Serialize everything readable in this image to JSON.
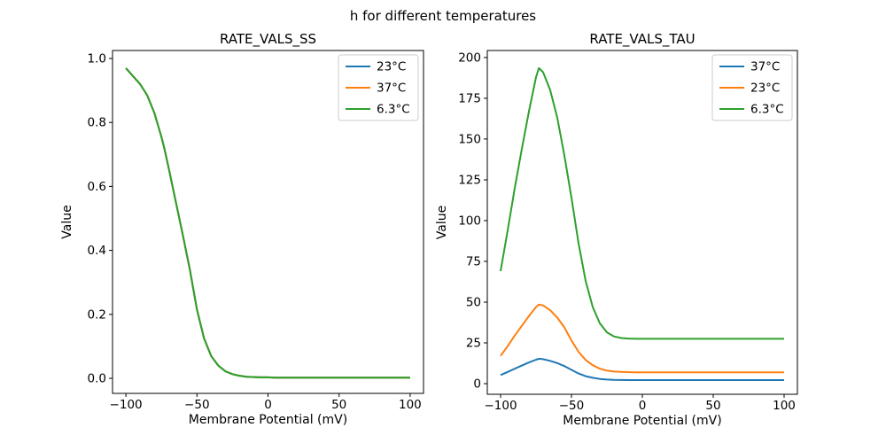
{
  "figure": {
    "suptitle": "h for different temperatures"
  },
  "palette": {
    "blue": "#1f77b4",
    "orange": "#ff7f0e",
    "green": "#2ca02c",
    "axis_color": "#000000",
    "legend_border": "#cccccc",
    "background": "#ffffff"
  },
  "chart_data": [
    {
      "type": "line",
      "title": "RATE_VALS_SS",
      "xlabel": "Membrane Potential (mV)",
      "ylabel": "Value",
      "xlim": [
        -109.4,
        109.4
      ],
      "ylim": [
        -0.047,
        1.025
      ],
      "grid": false,
      "legend_position": "upper right",
      "xticks": [
        -100,
        -50,
        0,
        50,
        100
      ],
      "xtick_labels": [
        "−100",
        "−50",
        "0",
        "50",
        "100"
      ],
      "yticks": [
        0.0,
        0.2,
        0.4,
        0.6,
        0.8,
        1.0
      ],
      "ytick_labels": [
        "0.0",
        "0.2",
        "0.4",
        "0.6",
        "0.8",
        "1.0"
      ],
      "legend": [
        {
          "label": "23°C",
          "color": "#1f77b4"
        },
        {
          "label": "37°C",
          "color": "#ff7f0e"
        },
        {
          "label": "6.3°C",
          "color": "#2ca02c"
        }
      ],
      "x": [
        -100,
        -95,
        -90,
        -85,
        -80,
        -75,
        -73,
        -70,
        -65,
        -60,
        -55,
        -50,
        -45,
        -40,
        -35,
        -30,
        -25,
        -20,
        -15,
        -10,
        -5,
        0,
        5,
        10,
        15,
        20,
        25,
        30,
        35,
        40,
        45,
        50,
        55,
        60,
        65,
        70,
        75,
        80,
        85,
        90,
        95,
        100
      ],
      "series": [
        {
          "name": "23°C",
          "color": "#1f77b4",
          "values": [
            0.97,
            0.945,
            0.92,
            0.885,
            0.83,
            0.755,
            0.72,
            0.66,
            0.555,
            0.45,
            0.34,
            0.215,
            0.125,
            0.07,
            0.04,
            0.022,
            0.013,
            0.008,
            0.005,
            0.004,
            0.003,
            0.003,
            0.002,
            0.002,
            0.002,
            0.002,
            0.002,
            0.002,
            0.002,
            0.002,
            0.002,
            0.002,
            0.002,
            0.002,
            0.002,
            0.002,
            0.002,
            0.002,
            0.002,
            0.002,
            0.002,
            0.002
          ]
        },
        {
          "name": "37°C",
          "color": "#ff7f0e",
          "values": [
            0.97,
            0.945,
            0.92,
            0.885,
            0.83,
            0.755,
            0.72,
            0.66,
            0.555,
            0.45,
            0.34,
            0.215,
            0.125,
            0.07,
            0.04,
            0.022,
            0.013,
            0.008,
            0.005,
            0.004,
            0.003,
            0.003,
            0.002,
            0.002,
            0.002,
            0.002,
            0.002,
            0.002,
            0.002,
            0.002,
            0.002,
            0.002,
            0.002,
            0.002,
            0.002,
            0.002,
            0.002,
            0.002,
            0.002,
            0.002,
            0.002,
            0.002
          ]
        },
        {
          "name": "6.3°C",
          "color": "#2ca02c",
          "values": [
            0.97,
            0.945,
            0.92,
            0.885,
            0.83,
            0.755,
            0.72,
            0.66,
            0.555,
            0.45,
            0.34,
            0.215,
            0.125,
            0.07,
            0.04,
            0.022,
            0.013,
            0.008,
            0.005,
            0.004,
            0.003,
            0.003,
            0.002,
            0.002,
            0.002,
            0.002,
            0.002,
            0.002,
            0.002,
            0.002,
            0.002,
            0.002,
            0.002,
            0.002,
            0.002,
            0.002,
            0.002,
            0.002,
            0.002,
            0.002,
            0.002,
            0.002
          ]
        }
      ]
    },
    {
      "type": "line",
      "title": "RATE_VALS_TAU",
      "xlabel": "Membrane Potential (mV)",
      "ylabel": "Value",
      "xlim": [
        -109.4,
        109.4
      ],
      "ylim": [
        -6.5,
        204.3
      ],
      "grid": false,
      "legend_position": "upper right",
      "xticks": [
        -100,
        -50,
        0,
        50,
        100
      ],
      "xtick_labels": [
        "−100",
        "−50",
        "0",
        "50",
        "100"
      ],
      "yticks": [
        0,
        25,
        50,
        75,
        100,
        125,
        150,
        175,
        200
      ],
      "ytick_labels": [
        "0",
        "25",
        "50",
        "75",
        "100",
        "125",
        "150",
        "175",
        "200"
      ],
      "legend": [
        {
          "label": "37°C",
          "color": "#1f77b4"
        },
        {
          "label": "23°C",
          "color": "#ff7f0e"
        },
        {
          "label": "6.3°C",
          "color": "#2ca02c"
        }
      ],
      "x": [
        -100,
        -95,
        -90,
        -85,
        -80,
        -75,
        -73,
        -70,
        -65,
        -60,
        -55,
        -50,
        -45,
        -40,
        -35,
        -30,
        -25,
        -20,
        -15,
        -10,
        -5,
        0,
        5,
        10,
        15,
        20,
        25,
        30,
        35,
        40,
        45,
        50,
        55,
        60,
        65,
        70,
        75,
        80,
        85,
        90,
        95,
        100
      ],
      "series": [
        {
          "name": "37°C",
          "color": "#1f77b4",
          "values": [
            5.3,
            7.2,
            9.2,
            11.1,
            13,
            14.7,
            15.3,
            15,
            14,
            12.6,
            10.8,
            8.5,
            6.2,
            4.6,
            3.6,
            2.9,
            2.5,
            2.3,
            2.25,
            2.2,
            2.2,
            2.2,
            2.2,
            2.2,
            2.2,
            2.2,
            2.2,
            2.2,
            2.2,
            2.2,
            2.2,
            2.2,
            2.2,
            2.2,
            2.2,
            2.2,
            2.2,
            2.2,
            2.2,
            2.2,
            2.2,
            2.2
          ]
        },
        {
          "name": "23°C",
          "color": "#ff7f0e",
          "values": [
            17,
            23,
            29.5,
            35.5,
            41.5,
            47,
            48.5,
            48,
            45,
            40.5,
            34.5,
            26.5,
            19.5,
            14.5,
            11.3,
            9.2,
            8,
            7.4,
            7.2,
            7.1,
            7,
            7,
            7,
            7,
            7,
            7,
            7,
            7,
            7,
            7,
            7,
            7,
            7,
            7,
            7,
            7,
            7,
            7,
            7,
            7,
            7,
            7
          ]
        },
        {
          "name": "6.3°C",
          "color": "#2ca02c",
          "values": [
            69,
            94,
            120,
            144,
            167,
            188,
            193.5,
            191,
            180,
            163,
            140,
            114,
            86,
            63,
            47,
            37,
            31.5,
            29,
            28,
            27.7,
            27.5,
            27.5,
            27.5,
            27.5,
            27.5,
            27.5,
            27.5,
            27.5,
            27.5,
            27.5,
            27.5,
            27.5,
            27.5,
            27.5,
            27.5,
            27.5,
            27.5,
            27.5,
            27.5,
            27.5,
            27.5,
            27.5
          ]
        }
      ]
    }
  ]
}
